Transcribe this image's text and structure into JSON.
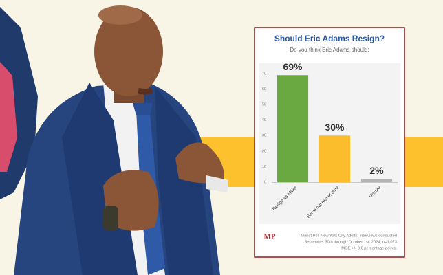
{
  "chart_data": {
    "type": "bar",
    "title": "Should Eric Adams Resign?",
    "subtitle": "Do you think Eric Adams should:",
    "categories": [
      "Resign as Major",
      "Serve out rest of term",
      "Unsure"
    ],
    "values": [
      69,
      30,
      2
    ],
    "value_labels": [
      "69%",
      "30%",
      "2%"
    ],
    "colors": [
      "#6aa842",
      "#fbbd2c",
      "#b3b3b3"
    ],
    "ylim": [
      0,
      70
    ],
    "yticks": [
      0,
      10,
      20,
      30,
      40,
      50,
      60,
      70
    ],
    "grid": false,
    "logo": "MP",
    "footer": [
      "Marist Poll New York City Adults. Interviews conducted",
      "September 30th through October 1st, 2024, n=1,073",
      "MOE +/- 3.6 percentage points."
    ]
  }
}
